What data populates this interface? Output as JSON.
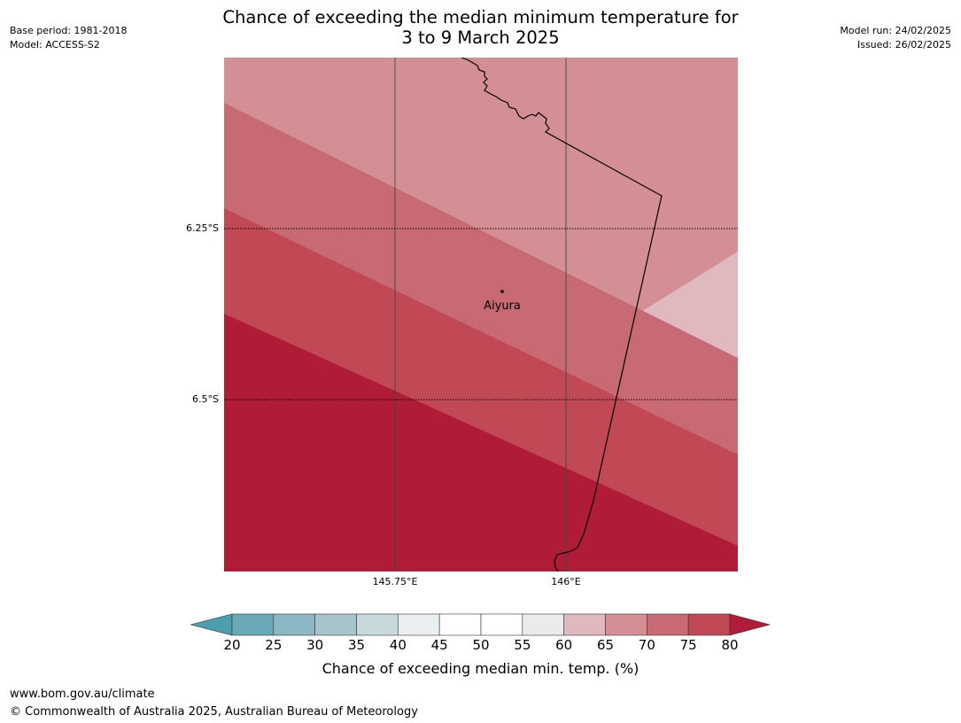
{
  "title": {
    "line1": "Chance of exceeding the median minimum temperature for",
    "line2": "3 to 9 March 2025"
  },
  "meta_left": {
    "base_period": "Base period: 1981-2018",
    "model": "Model: ACCESS-S2"
  },
  "meta_right": {
    "model_run": "Model run: 24/02/2025",
    "issued": "Issued: 26/02/2025"
  },
  "map": {
    "lat_labels": [
      "6.25°S",
      "6.5°S"
    ],
    "lon_labels": [
      "145.75°E",
      "146°E"
    ],
    "place": "Aiyura",
    "band_colors": [
      "#ecebec",
      "#dfb9bd",
      "#d48f95",
      "#c86a73",
      "#c14956",
      "#b01c38"
    ]
  },
  "colorbar": {
    "ticks": [
      "20",
      "25",
      "30",
      "35",
      "40",
      "45",
      "50",
      "55",
      "60",
      "65",
      "70",
      "75",
      "80"
    ],
    "colors": [
      "#6aa8b8",
      "#8bb6c3",
      "#a7c4cb",
      "#c8d9dc",
      "#e9eff1",
      "#ffffff",
      "#ffffff",
      "#ecebec",
      "#dfb9bd",
      "#d48f95",
      "#c86a73",
      "#c14956"
    ],
    "under_color": "#4a9eb0",
    "over_color": "#b01c38",
    "label": "Chance of exceeding median min. temp. (%)"
  },
  "footer": {
    "url": "www.bom.gov.au/climate",
    "copyright": "© Commonwealth of Australia 2025, Australian Bureau of Meteorology"
  }
}
